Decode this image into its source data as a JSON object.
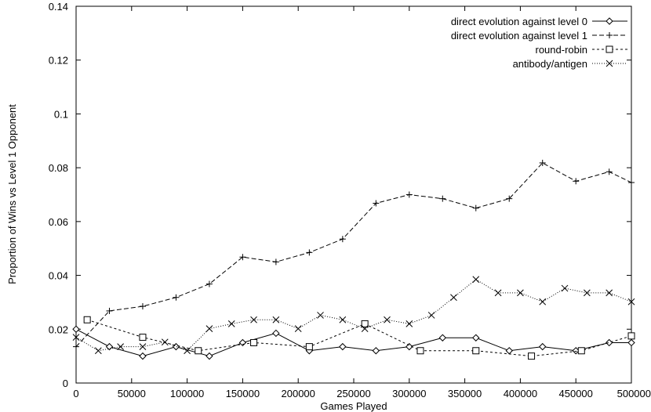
{
  "chart_data": {
    "type": "line",
    "title": "",
    "xlabel": "Games Played",
    "ylabel": "Proportion of Wins vs Level 1 Opponent",
    "xlim": [
      0,
      500000
    ],
    "ylim": [
      0,
      0.14
    ],
    "xticks": [
      0,
      50000,
      100000,
      150000,
      200000,
      250000,
      300000,
      350000,
      400000,
      450000,
      500000
    ],
    "xtick_labels": [
      "0",
      "50000",
      "100000",
      "150000",
      "200000",
      "250000",
      "300000",
      "350000",
      "400000",
      "450000",
      "500000"
    ],
    "yticks": [
      0,
      0.02,
      0.04,
      0.06,
      0.08,
      0.1,
      0.12,
      0.14
    ],
    "ytick_labels": [
      "0",
      "0.02",
      "0.04",
      "0.06",
      "0.08",
      "0.1",
      "0.12",
      "0.14"
    ],
    "grid": false,
    "legend_position": "top-right",
    "series": [
      {
        "name": "direct evolution against level 0",
        "marker": "diamond",
        "line": "solid",
        "x": [
          0,
          30000,
          60000,
          90000,
          120000,
          150000,
          180000,
          210000,
          240000,
          270000,
          300000,
          330000,
          360000,
          390000,
          420000,
          450000,
          480000,
          500000
        ],
        "y": [
          0.02,
          0.0135,
          0.01,
          0.0135,
          0.01,
          0.015,
          0.0185,
          0.012,
          0.0135,
          0.012,
          0.0135,
          0.0168,
          0.0168,
          0.012,
          0.0135,
          0.012,
          0.015,
          0.015
        ]
      },
      {
        "name": "direct evolution against level 1",
        "marker": "plus",
        "line": "dashed",
        "x": [
          0,
          30000,
          60000,
          90000,
          120000,
          150000,
          180000,
          210000,
          240000,
          270000,
          300000,
          330000,
          360000,
          390000,
          420000,
          450000,
          480000,
          500000
        ],
        "y": [
          0.0135,
          0.0268,
          0.0285,
          0.0318,
          0.0368,
          0.0468,
          0.045,
          0.0485,
          0.0535,
          0.0668,
          0.07,
          0.0685,
          0.065,
          0.0685,
          0.0818,
          0.075,
          0.0785,
          0.0745
        ]
      },
      {
        "name": "round-robin",
        "marker": "square",
        "line": "short-dash",
        "x": [
          10000,
          60000,
          110000,
          160000,
          210000,
          260000,
          310000,
          360000,
          410000,
          455000,
          500000
        ],
        "y": [
          0.0235,
          0.017,
          0.012,
          0.015,
          0.0135,
          0.022,
          0.012,
          0.012,
          0.01,
          0.012,
          0.0175
        ]
      },
      {
        "name": "antibody/antigen",
        "marker": "cross",
        "line": "dotted",
        "x": [
          0,
          20000,
          40000,
          60000,
          80000,
          100000,
          120000,
          140000,
          160000,
          180000,
          200000,
          220000,
          240000,
          260000,
          280000,
          300000,
          320000,
          340000,
          360000,
          380000,
          400000,
          420000,
          440000,
          460000,
          480000,
          500000
        ],
        "y": [
          0.017,
          0.012,
          0.0135,
          0.0135,
          0.0152,
          0.012,
          0.0202,
          0.022,
          0.0235,
          0.0235,
          0.0202,
          0.0252,
          0.0235,
          0.0202,
          0.0235,
          0.022,
          0.0252,
          0.0318,
          0.0385,
          0.0335,
          0.0335,
          0.0302,
          0.0352,
          0.0335,
          0.0335,
          0.0302
        ]
      }
    ]
  }
}
